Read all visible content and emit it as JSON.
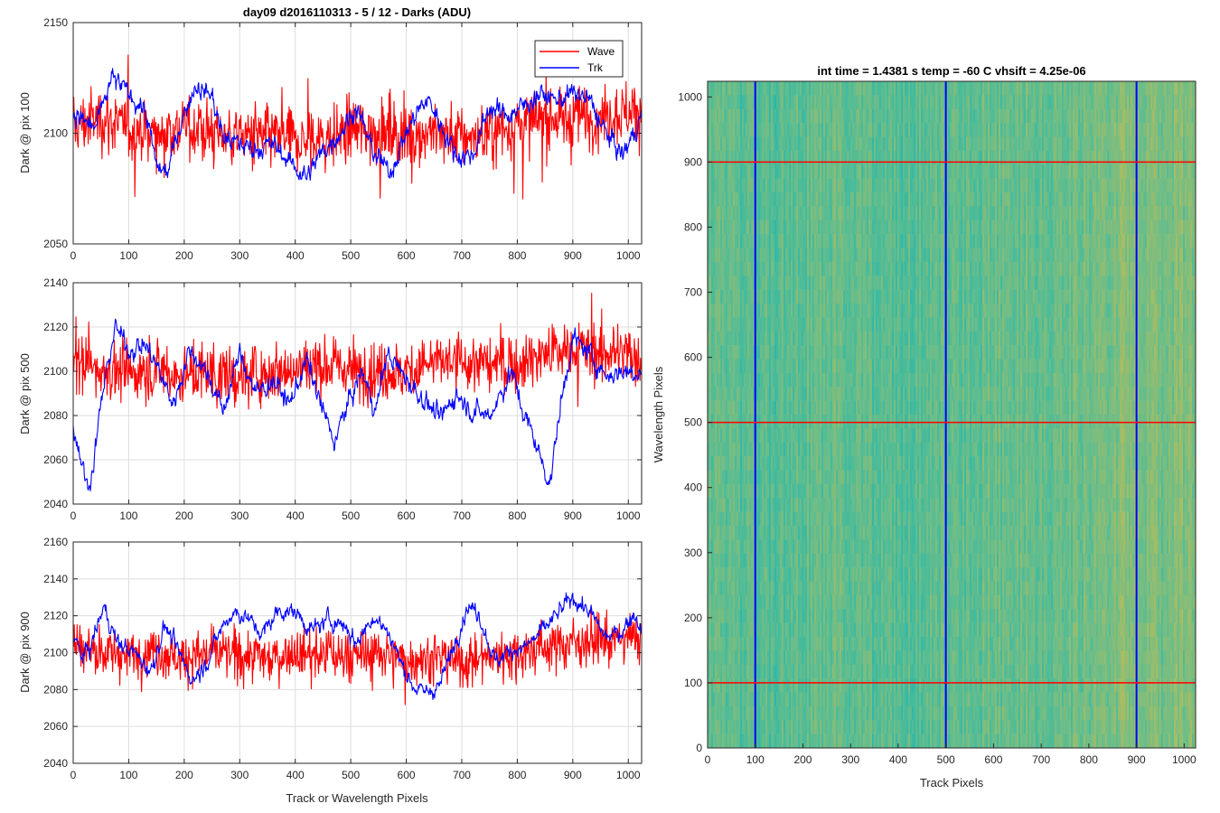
{
  "figure": {
    "background": "#ffffff",
    "series_colors": {
      "Wave": "#ff0000",
      "Trk": "#0000ff"
    }
  },
  "chart_data": [
    {
      "type": "line",
      "title": "day09 d2016110313 - 5 / 12 - Darks (ADU)",
      "xlabel": "",
      "ylabel": "Dark @ pix 100",
      "xlim": [
        0,
        1024
      ],
      "ylim": [
        2050,
        2150
      ],
      "xticks": [
        0,
        100,
        200,
        300,
        400,
        500,
        600,
        700,
        800,
        900,
        1000
      ],
      "yticks": [
        2050,
        2100,
        2150
      ],
      "grid": true,
      "legend": {
        "position": "top-right",
        "entries": [
          "Wave",
          "Trk"
        ]
      },
      "series": [
        {
          "name": "Wave",
          "color": "#ff0000",
          "x": [
            0,
            50,
            100,
            150,
            200,
            250,
            300,
            350,
            400,
            450,
            500,
            550,
            600,
            650,
            700,
            750,
            800,
            850,
            900,
            950,
            1000,
            1024
          ],
          "values": [
            2103,
            2107,
            2102,
            2100,
            2103,
            2100,
            2099,
            2098,
            2096,
            2097,
            2101,
            2101,
            2099,
            2101,
            2098,
            2099,
            2104,
            2106,
            2107,
            2108,
            2110,
            2109
          ],
          "spread": 12
        },
        {
          "name": "Trk",
          "color": "#0000ff",
          "x": [
            0,
            20,
            40,
            70,
            100,
            130,
            150,
            170,
            190,
            220,
            250,
            270,
            300,
            330,
            360,
            390,
            420,
            450,
            480,
            510,
            540,
            570,
            600,
            620,
            640,
            660,
            690,
            720,
            750,
            780,
            810,
            840,
            870,
            900,
            930,
            960,
            990,
            1010,
            1024
          ],
          "values": [
            2110,
            2105,
            2102,
            2125,
            2118,
            2110,
            2085,
            2082,
            2102,
            2122,
            2117,
            2098,
            2095,
            2093,
            2095,
            2087,
            2080,
            2092,
            2100,
            2112,
            2092,
            2082,
            2100,
            2110,
            2115,
            2105,
            2090,
            2090,
            2112,
            2108,
            2112,
            2118,
            2115,
            2118,
            2115,
            2100,
            2090,
            2100,
            2108
          ],
          "spread": 5
        }
      ]
    },
    {
      "type": "line",
      "title": "",
      "xlabel": "",
      "ylabel": "Dark @ pix 500",
      "xlim": [
        0,
        1024
      ],
      "ylim": [
        2040,
        2140
      ],
      "xticks": [
        0,
        100,
        200,
        300,
        400,
        500,
        600,
        700,
        800,
        900,
        1000
      ],
      "yticks": [
        2040,
        2060,
        2080,
        2100,
        2120,
        2140
      ],
      "grid": true,
      "series": [
        {
          "name": "Wave",
          "color": "#ff0000",
          "x": [
            0,
            50,
            100,
            150,
            200,
            250,
            300,
            350,
            400,
            450,
            500,
            550,
            600,
            650,
            700,
            750,
            800,
            850,
            900,
            950,
            1000,
            1024
          ],
          "values": [
            2104,
            2101,
            2099,
            2100,
            2098,
            2099,
            2097,
            2100,
            2101,
            2103,
            2101,
            2099,
            2100,
            2104,
            2104,
            2103,
            2104,
            2108,
            2110,
            2108,
            2108,
            2106
          ],
          "spread": 11
        },
        {
          "name": "Trk",
          "color": "#0000ff",
          "x": [
            0,
            15,
            25,
            35,
            50,
            75,
            100,
            130,
            155,
            180,
            210,
            240,
            270,
            300,
            330,
            360,
            390,
            420,
            450,
            470,
            490,
            520,
            545,
            565,
            590,
            615,
            640,
            660,
            690,
            720,
            750,
            770,
            790,
            810,
            830,
            850,
            860,
            875,
            900,
            930,
            960,
            990,
            1010,
            1024
          ],
          "values": [
            2075,
            2060,
            2048,
            2055,
            2085,
            2120,
            2110,
            2112,
            2100,
            2085,
            2110,
            2100,
            2082,
            2108,
            2090,
            2096,
            2085,
            2105,
            2082,
            2068,
            2082,
            2100,
            2082,
            2108,
            2100,
            2092,
            2085,
            2078,
            2090,
            2082,
            2080,
            2090,
            2100,
            2082,
            2070,
            2055,
            2050,
            2080,
            2115,
            2108,
            2098,
            2100,
            2100,
            2100
          ],
          "spread": 5
        }
      ]
    },
    {
      "type": "line",
      "title": "",
      "xlabel": "Track or Wavelength Pixels",
      "ylabel": "Dark @ pix 900",
      "xlim": [
        0,
        1024
      ],
      "ylim": [
        2040,
        2160
      ],
      "xticks": [
        0,
        100,
        200,
        300,
        400,
        500,
        600,
        700,
        800,
        900,
        1000
      ],
      "yticks": [
        2040,
        2060,
        2080,
        2100,
        2120,
        2140,
        2160
      ],
      "grid": true,
      "series": [
        {
          "name": "Wave",
          "color": "#ff0000",
          "x": [
            0,
            50,
            100,
            150,
            200,
            250,
            300,
            350,
            400,
            450,
            500,
            550,
            600,
            650,
            700,
            750,
            800,
            850,
            900,
            950,
            1000,
            1024
          ],
          "values": [
            2105,
            2100,
            2099,
            2101,
            2097,
            2100,
            2099,
            2097,
            2100,
            2099,
            2098,
            2100,
            2096,
            2097,
            2095,
            2098,
            2100,
            2103,
            2106,
            2107,
            2108,
            2108
          ],
          "spread": 11
        },
        {
          "name": "Trk",
          "color": "#0000ff",
          "x": [
            0,
            15,
            30,
            55,
            80,
            110,
            140,
            165,
            190,
            215,
            240,
            270,
            290,
            310,
            340,
            370,
            400,
            430,
            460,
            490,
            510,
            540,
            570,
            590,
            610,
            630,
            660,
            690,
            710,
            730,
            760,
            790,
            810,
            840,
            870,
            900,
            930,
            960,
            990,
            1010,
            1024
          ],
          "values": [
            2110,
            2098,
            2102,
            2125,
            2105,
            2100,
            2090,
            2115,
            2100,
            2085,
            2095,
            2115,
            2122,
            2120,
            2110,
            2123,
            2122,
            2112,
            2118,
            2115,
            2105,
            2120,
            2110,
            2095,
            2083,
            2078,
            2082,
            2108,
            2125,
            2122,
            2095,
            2102,
            2102,
            2110,
            2120,
            2130,
            2122,
            2108,
            2112,
            2122,
            2112
          ],
          "spread": 5
        }
      ]
    },
    {
      "type": "heatmap",
      "title": "int time = 1.4381 s    temp = -60 C    vhsift = 4.25e-06",
      "xlabel": "Track Pixels",
      "ylabel": "Wavelength Pixels",
      "xlim": [
        0,
        1024
      ],
      "ylim": [
        0,
        1024
      ],
      "xticks": [
        0,
        100,
        200,
        300,
        400,
        500,
        600,
        700,
        800,
        900,
        1000
      ],
      "yticks": [
        0,
        100,
        200,
        300,
        400,
        500,
        600,
        700,
        800,
        900,
        1000
      ],
      "colormap": [
        "#2bb6ad",
        "#44bb9c",
        "#6abd8a",
        "#8dbd74",
        "#b4bd5c"
      ],
      "column_brightness": {
        "x": [
          0,
          50,
          100,
          150,
          200,
          250,
          300,
          350,
          400,
          450,
          500,
          550,
          600,
          650,
          700,
          750,
          800,
          850,
          900,
          950,
          1000,
          1024
        ],
        "level": [
          0.5,
          0.42,
          0.38,
          0.35,
          0.45,
          0.5,
          0.48,
          0.38,
          0.35,
          0.42,
          0.45,
          0.4,
          0.5,
          0.52,
          0.48,
          0.5,
          0.58,
          0.65,
          0.7,
          0.6,
          0.65,
          0.6
        ]
      },
      "overlay_lines": {
        "vertical": {
          "color": "#0000ff",
          "x": [
            100,
            500,
            900
          ]
        },
        "horizontal": {
          "color": "#ff0000",
          "y": [
            100,
            500,
            900
          ]
        }
      }
    }
  ]
}
